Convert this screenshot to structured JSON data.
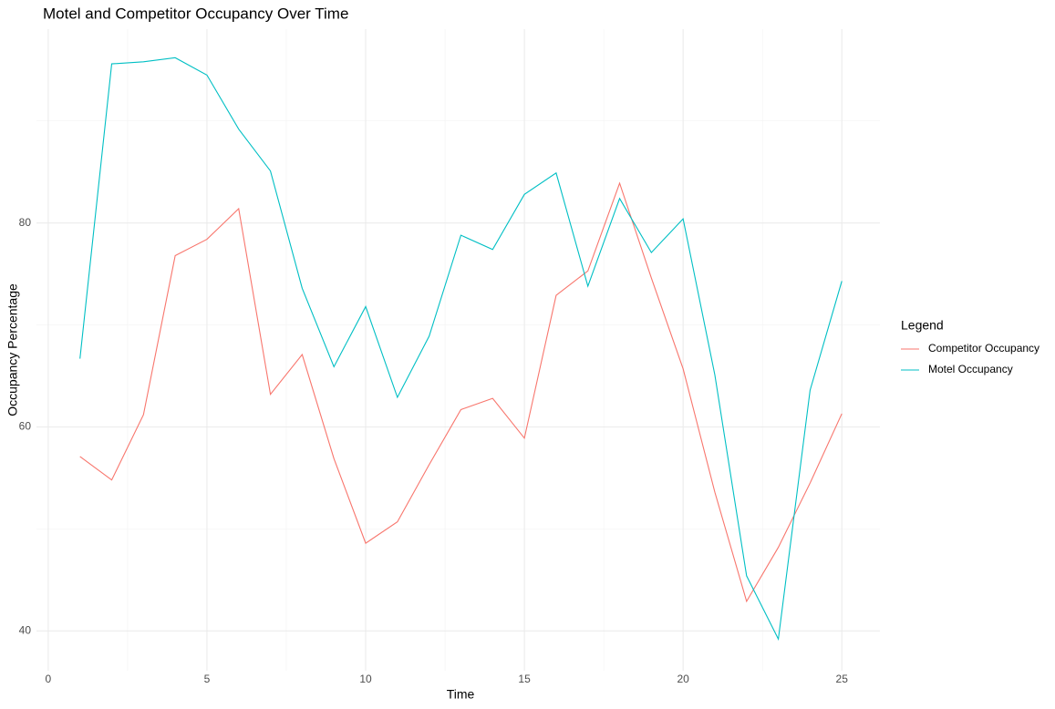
{
  "chart_data": {
    "type": "line",
    "title": "Motel and Competitor Occupancy Over Time",
    "x_label": "Time",
    "y_label": "Occupancy Percentage",
    "legend_title": "Legend",
    "legend_position": "right",
    "grid": true,
    "x": [
      1,
      2,
      3,
      4,
      5,
      6,
      7,
      8,
      9,
      10,
      11,
      12,
      13,
      14,
      15,
      16,
      17,
      18,
      19,
      20,
      21,
      22,
      23,
      24,
      25
    ],
    "series": [
      {
        "name": "Competitor Occupancy",
        "color": "#F8766D",
        "values": [
          57.1,
          54.8,
          61.2,
          76.8,
          78.4,
          81.4,
          63.2,
          67.1,
          56.9,
          48.6,
          50.7,
          56.3,
          61.7,
          62.8,
          58.9,
          72.9,
          75.3,
          83.9,
          74.6,
          65.7,
          53.6,
          42.9,
          48.2,
          54.5,
          61.3
        ]
      },
      {
        "name": "Motel Occupancy",
        "color": "#00BFC4",
        "values": [
          66.7,
          95.6,
          95.8,
          96.2,
          94.5,
          89.2,
          85.1,
          73.6,
          65.9,
          71.8,
          62.9,
          68.9,
          78.8,
          77.4,
          82.8,
          84.9,
          73.8,
          82.4,
          77.1,
          80.4,
          65.1,
          45.4,
          39.2,
          63.6,
          74.3
        ]
      }
    ],
    "xlim": [
      -0.37,
      26.2
    ],
    "ylim": [
      36.1,
      99.0
    ],
    "xticks": [
      0,
      5,
      10,
      15,
      20,
      25
    ],
    "yticks": [
      40,
      60,
      80
    ]
  }
}
